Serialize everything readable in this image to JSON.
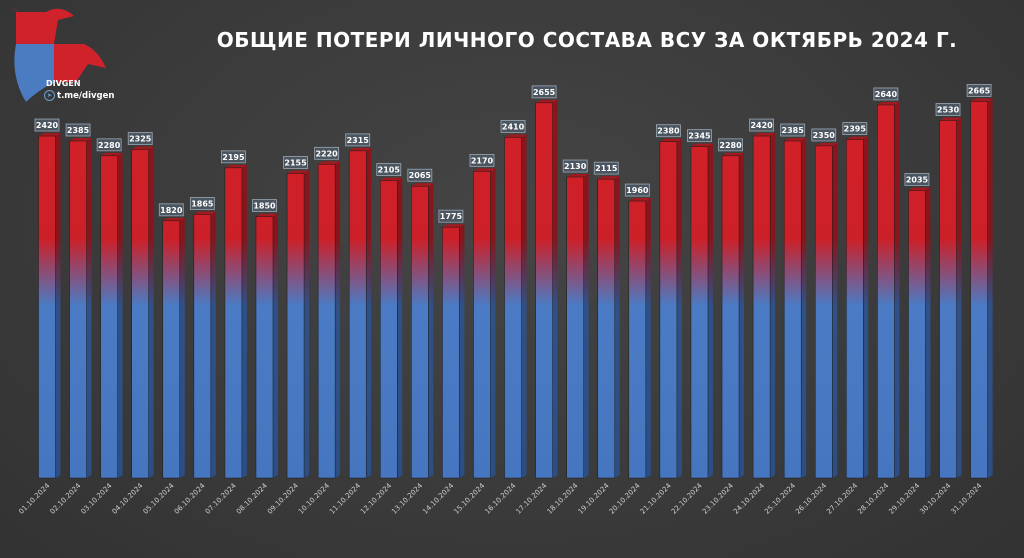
{
  "logo": {
    "brand": "DIVGEN",
    "link": "t.me/divgen",
    "icon": "telegram-icon"
  },
  "chart_data": {
    "type": "bar",
    "title": "ОБЩИЕ ПОТЕРИ ЛИЧНОГО СОСТАВА ВСУ ЗА ОКТЯБРЬ 2024 Г.",
    "xlabel": "",
    "ylabel": "",
    "ylim": [
      0,
      2700
    ],
    "grid": false,
    "colors": {
      "top": "#d81f26",
      "bottom": "#4a7bc4"
    },
    "categories": [
      "01.10.2024",
      "02.10.2024",
      "03.10.2024",
      "04.10.2024",
      "05.10.2024",
      "06.10.2024",
      "07.10.2024",
      "08.10.2024",
      "09.10.2024",
      "10.10.2024",
      "11.10.2024",
      "12.10.2024",
      "13.10.2024",
      "14.10.2024",
      "15.10.2024",
      "16.10.2024",
      "17.10.2024",
      "18.10.2024",
      "19.10.2024",
      "20.10.2024",
      "21.10.2024",
      "22.10.2024",
      "23.10.2024",
      "24.10.2024",
      "25.10.2024",
      "26.10.2024",
      "27.10.2024",
      "28.10.2024",
      "29.10.2024",
      "30.10.2024",
      "31.10.2024"
    ],
    "values": [
      2420,
      2385,
      2280,
      2325,
      1820,
      1865,
      2195,
      1850,
      2155,
      2220,
      2315,
      2105,
      2065,
      1775,
      2170,
      2410,
      2655,
      2130,
      2115,
      1960,
      2380,
      2345,
      2280,
      2420,
      2385,
      2350,
      2395,
      2640,
      2035,
      2530,
      2665
    ]
  }
}
